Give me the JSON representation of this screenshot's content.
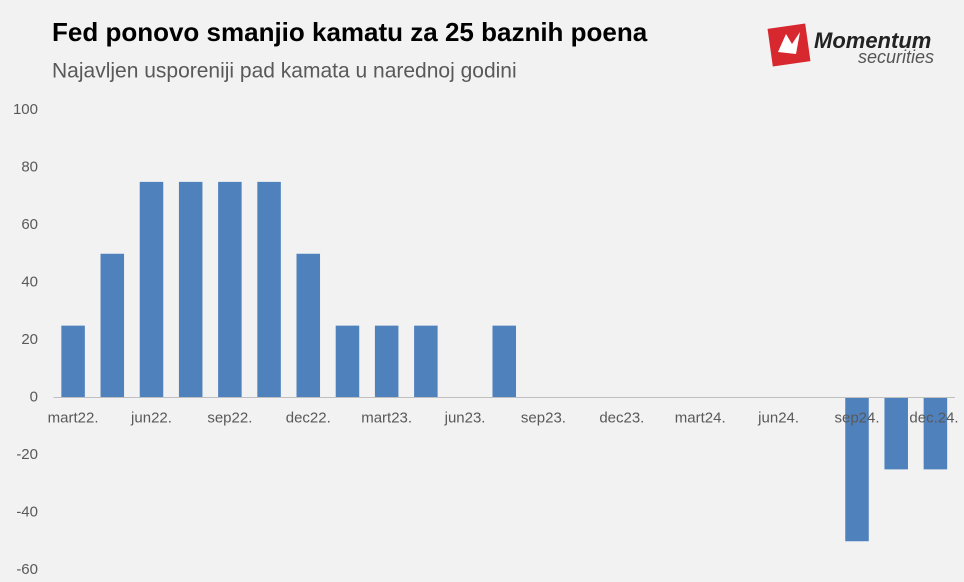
{
  "chart_data": {
    "type": "bar",
    "title": "Fed ponovo smanjio kamatu za 25 baznih poena",
    "subtitle": "Najavljen usporeniji pad kamata u narednoj godini",
    "logo": {
      "name": "Momentum",
      "tagline": "securities"
    },
    "categories": [
      "mart22.",
      null,
      "jun22.",
      null,
      "sep22.",
      null,
      "dec22.",
      null,
      "mart23.",
      null,
      "jun23.",
      null,
      "sep23.",
      null,
      "dec23.",
      null,
      "mart24.",
      null,
      "jun24.",
      null,
      "sep24.",
      null,
      "dec.24."
    ],
    "values": [
      25,
      50,
      75,
      75,
      75,
      75,
      50,
      25,
      25,
      25,
      0,
      25,
      0,
      0,
      0,
      0,
      0,
      0,
      0,
      0,
      -50,
      -25,
      -25
    ],
    "color": "#4f81bd",
    "ylim": [
      -60,
      100
    ],
    "yticks": [
      -60,
      -40,
      -20,
      0,
      20,
      40,
      60,
      80,
      100
    ],
    "grid": false
  }
}
